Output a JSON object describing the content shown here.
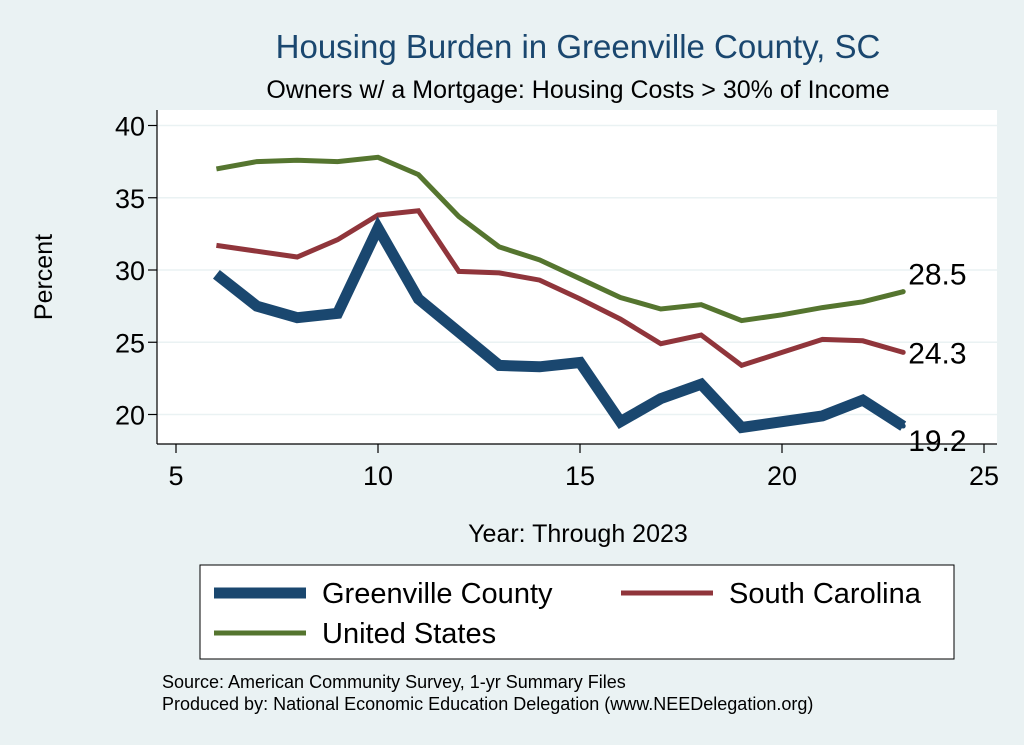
{
  "chart_data": {
    "type": "line",
    "title": "Housing Burden in Greenville County, SC",
    "subtitle": "Owners w/ a Mortgage: Housing Costs > 30% of Income",
    "xlabel": "Year: Through 2023",
    "ylabel": "Percent",
    "xlim": [
      4.5,
      25.5
    ],
    "ylim": [
      18,
      41
    ],
    "xticks": [
      5,
      10,
      15,
      20,
      25
    ],
    "yticks": [
      20,
      25,
      30,
      35,
      40
    ],
    "grid": true,
    "x": [
      6,
      7,
      8,
      9,
      10,
      11,
      12,
      13,
      14,
      15,
      16,
      17,
      18,
      19,
      20,
      21,
      22,
      23
    ],
    "series": [
      {
        "name": "Greenville County",
        "color": "#1a476f",
        "values": [
          29.7,
          27.5,
          26.7,
          27.0,
          32.9,
          28.0,
          25.7,
          23.4,
          23.3,
          23.6,
          19.5,
          21.1,
          22.1,
          19.1,
          19.5,
          19.9,
          21.0,
          19.2
        ],
        "end_label": "19.2"
      },
      {
        "name": "South Carolina",
        "color": "#90353b",
        "values": [
          31.7,
          31.3,
          30.9,
          32.1,
          33.8,
          34.1,
          29.9,
          29.8,
          29.3,
          28.0,
          26.6,
          24.9,
          25.5,
          23.4,
          24.3,
          25.2,
          25.1,
          24.3
        ],
        "end_label": "24.3"
      },
      {
        "name": "United States",
        "color": "#55752f",
        "values": [
          37.0,
          37.5,
          37.6,
          37.5,
          37.8,
          36.6,
          33.7,
          31.6,
          30.7,
          29.4,
          28.1,
          27.3,
          27.6,
          26.5,
          26.9,
          27.4,
          27.8,
          28.5
        ],
        "end_label": "28.5"
      }
    ],
    "legend": {
      "placement": "bottom"
    },
    "notes": [
      "Source: American Community Survey, 1-yr Summary Files",
      "Produced by: National Economic Education Delegation (www.NEEDelegation.org)"
    ]
  }
}
